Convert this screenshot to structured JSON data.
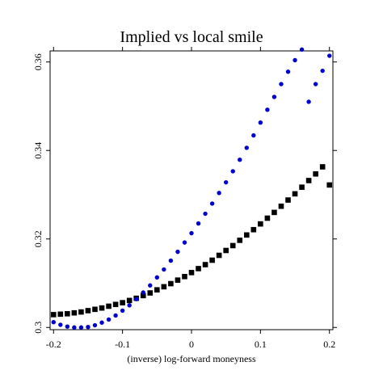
{
  "chart_data": {
    "type": "scatter",
    "title": "Implied vs local smile",
    "xlabel": "(inverse) log-forward moneyness",
    "ylabel": "",
    "xlim": [
      -0.205,
      0.205
    ],
    "ylim": [
      0.2995,
      0.3625
    ],
    "x_ticks": [
      -0.2,
      -0.1,
      0,
      0.1,
      0.2
    ],
    "x_tick_labels": [
      "-0.2",
      "-0.1",
      "0",
      "0.1",
      "0.2"
    ],
    "y_ticks": [
      0.3,
      0.32,
      0.34,
      0.36
    ],
    "y_tick_labels": [
      "0.3",
      "0.32",
      "0.34",
      "0.36"
    ],
    "grid": false,
    "series": [
      {
        "marker": "square",
        "color": "#000000",
        "x": [
          -0.2,
          -0.19,
          -0.18,
          -0.17,
          -0.16,
          -0.15,
          -0.14,
          -0.13,
          -0.12,
          -0.11,
          -0.1,
          -0.09,
          -0.08,
          -0.07,
          -0.06,
          -0.05,
          -0.04,
          -0.03,
          -0.02,
          -0.01,
          0,
          0.01,
          0.02,
          0.03,
          0.04,
          0.05,
          0.06,
          0.07,
          0.08,
          0.09,
          0.1,
          0.11,
          0.12,
          0.13,
          0.14,
          0.15,
          0.16,
          0.17,
          0.18,
          0.19,
          0.2
        ],
        "values": [
          0.3029,
          0.303,
          0.3031,
          0.3033,
          0.3035,
          0.3038,
          0.3041,
          0.3044,
          0.3048,
          0.3052,
          0.3056,
          0.3061,
          0.3066,
          0.3072,
          0.3078,
          0.3085,
          0.3092,
          0.3099,
          0.3107,
          0.3115,
          0.3124,
          0.3133,
          0.3142,
          0.3152,
          0.3163,
          0.3174,
          0.3185,
          0.3197,
          0.3209,
          0.3221,
          0.3234,
          0.3247,
          0.326,
          0.3274,
          0.3288,
          0.3302,
          0.3317,
          0.3332,
          0.3347,
          0.3363,
          0.3322
        ]
      },
      {
        "marker": "circle",
        "color": "#0000cc",
        "x": [
          -0.2,
          -0.19,
          -0.18,
          -0.17,
          -0.16,
          -0.15,
          -0.14,
          -0.13,
          -0.12,
          -0.11,
          -0.1,
          -0.09,
          -0.08,
          -0.07,
          -0.06,
          -0.05,
          -0.04,
          -0.03,
          -0.02,
          -0.01,
          0,
          0.01,
          0.02,
          0.03,
          0.04,
          0.05,
          0.06,
          0.07,
          0.08,
          0.09,
          0.1,
          0.11,
          0.12,
          0.13,
          0.14,
          0.15,
          0.16,
          0.17,
          0.18,
          0.19,
          0.2
        ],
        "values": [
          0.3012,
          0.3006,
          0.3002,
          0.3,
          0.3,
          0.3001,
          0.3005,
          0.3011,
          0.3018,
          0.3027,
          0.3038,
          0.305,
          0.3064,
          0.3079,
          0.3095,
          0.3113,
          0.3131,
          0.3151,
          0.3171,
          0.3192,
          0.3213,
          0.3235,
          0.3257,
          0.328,
          0.3304,
          0.3328,
          0.3353,
          0.3379,
          0.3406,
          0.3434,
          0.3463,
          0.3492,
          0.3521,
          0.355,
          0.3578,
          0.3604,
          0.3628,
          0.351,
          0.355,
          0.358,
          0.3614
        ]
      }
    ]
  }
}
